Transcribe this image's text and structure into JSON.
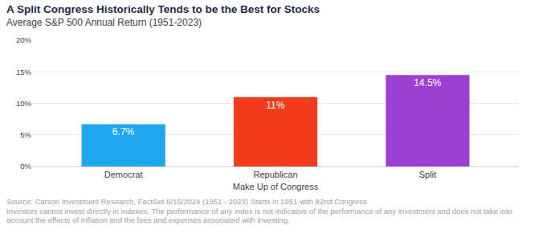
{
  "chart_data": {
    "type": "bar",
    "title": "A Split Congress Historically Tends to be the Best for Stocks",
    "subtitle": "Average S&P 500 Annual Return (1951-2023)",
    "x_label": "Make Up of Congress",
    "categories": [
      "Democrat",
      "Republican",
      "Split"
    ],
    "values": [
      6.7,
      11,
      14.5
    ],
    "value_labels": [
      "6.7%",
      "11%",
      "14.5%"
    ],
    "colors": [
      "#1ea6ee",
      "#f23c1e",
      "#9b40d2"
    ],
    "data_labels": true,
    "ylim": [
      0,
      20
    ],
    "yticks": [
      {
        "value": 0,
        "label": "0%"
      },
      {
        "value": 5,
        "label": "5%"
      },
      {
        "value": 10,
        "label": "10%"
      },
      {
        "value": 15,
        "label": "15%"
      },
      {
        "value": 20,
        "label": "20%"
      }
    ],
    "grid": true,
    "notes": [
      "Source: Carson Investment Research, FactSet 6/15/2024 (1951 - 2023)  Starts in 1951 with 82nd Congress",
      "Investors cannot invest directly in indexes. The performance of any index is not indicative of the performance of any investment and does not take into account the effects of inflation and the fees and expenses associated with investing."
    ]
  }
}
